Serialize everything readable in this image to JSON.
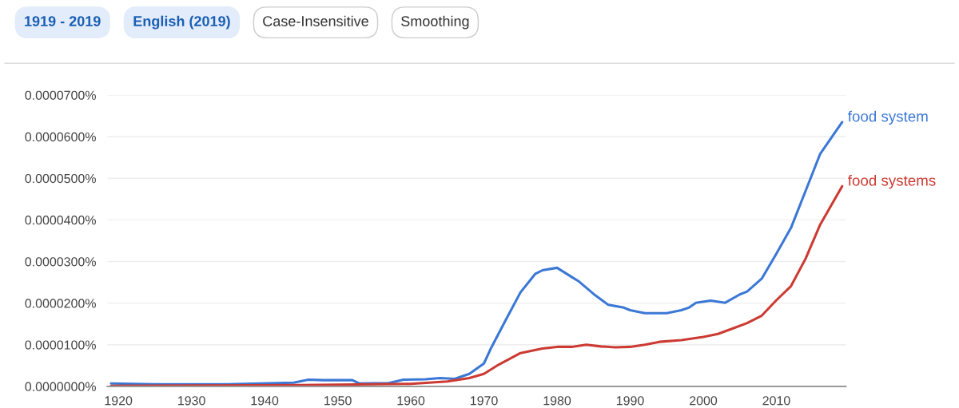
{
  "chart_data": {
    "type": "line",
    "annotations": [
      "1919 - 2019",
      "English (2019)",
      "Case-Insensitive",
      "Smoothing"
    ],
    "xlim": [
      1918.5,
      2019.5
    ],
    "xticks": [
      1920,
      1930,
      1940,
      1950,
      1960,
      1970,
      1980,
      1990,
      2000,
      2010
    ],
    "ylim": [
      0,
      7e-05
    ],
    "yticks": [
      {
        "value": 0,
        "label": "0.0000000%"
      },
      {
        "value": 1e-05,
        "label": "0.0000100%"
      },
      {
        "value": 2e-05,
        "label": "0.0000200%"
      },
      {
        "value": 3e-05,
        "label": "0.0000300%"
      },
      {
        "value": 4e-05,
        "label": "0.0000400%"
      },
      {
        "value": 5e-05,
        "label": "0.0000500%"
      },
      {
        "value": 6e-05,
        "label": "0.0000600%"
      },
      {
        "value": 7e-05,
        "label": "0.0000700%"
      }
    ],
    "grid": "y",
    "legend": false,
    "marker": "none",
    "line_style": "solid",
    "series": [
      {
        "name": "food system",
        "color": "#3b78d6",
        "x": [
          1919,
          1925,
          1935,
          1944,
          1946,
          1948,
          1952,
          1953,
          1957,
          1959,
          1962,
          1964,
          1966,
          1968,
          1970,
          1971,
          1973,
          1975,
          1977,
          1978,
          1980,
          1982,
          1983,
          1985,
          1987,
          1989,
          1990,
          1992,
          1995,
          1997,
          1998,
          1999,
          2001,
          2003,
          2005,
          2006,
          2008,
          2010,
          2012,
          2014,
          2016,
          2019
        ],
        "values": [
          7e-07,
          5e-07,
          5e-07,
          9e-07,
          1.6e-06,
          1.5e-06,
          1.5e-06,
          7e-07,
          8e-07,
          1.6e-06,
          1.7e-06,
          2e-06,
          1.8e-06,
          3e-06,
          5.5e-06,
          9.3e-06,
          1.6e-05,
          2.26e-05,
          2.7e-05,
          2.79e-05,
          2.85e-05,
          2.63e-05,
          2.52e-05,
          2.22e-05,
          1.96e-05,
          1.9e-05,
          1.83e-05,
          1.76e-05,
          1.76e-05,
          1.83e-05,
          1.89e-05,
          2.01e-05,
          2.06e-05,
          2.01e-05,
          2.21e-05,
          2.28e-05,
          2.59e-05,
          3.19e-05,
          3.81e-05,
          4.7e-05,
          5.59e-05,
          6.35e-05
        ]
      },
      {
        "name": "food systems",
        "color": "#cc3b33",
        "x": [
          1919,
          1930,
          1945,
          1950,
          1960,
          1965,
          1968,
          1970,
          1972,
          1975,
          1978,
          1980,
          1982,
          1984,
          1986,
          1988,
          1990,
          1992,
          1994,
          1997,
          2000,
          2002,
          2004,
          2006,
          2008,
          2010,
          2012,
          2014,
          2016,
          2019
        ],
        "values": [
          1e-07,
          2e-07,
          3e-07,
          4e-07,
          6e-07,
          1.2e-06,
          2e-06,
          3e-06,
          5.2e-06,
          8e-06,
          9.1e-06,
          9.5e-06,
          9.5e-06,
          1e-05,
          9.6e-06,
          9.4e-06,
          9.5e-06,
          1e-05,
          1.07e-05,
          1.11e-05,
          1.19e-05,
          1.26e-05,
          1.39e-05,
          1.52e-05,
          1.7e-05,
          2.07e-05,
          2.41e-05,
          3.07e-05,
          3.89e-05,
          4.81e-05
        ]
      }
    ]
  }
}
